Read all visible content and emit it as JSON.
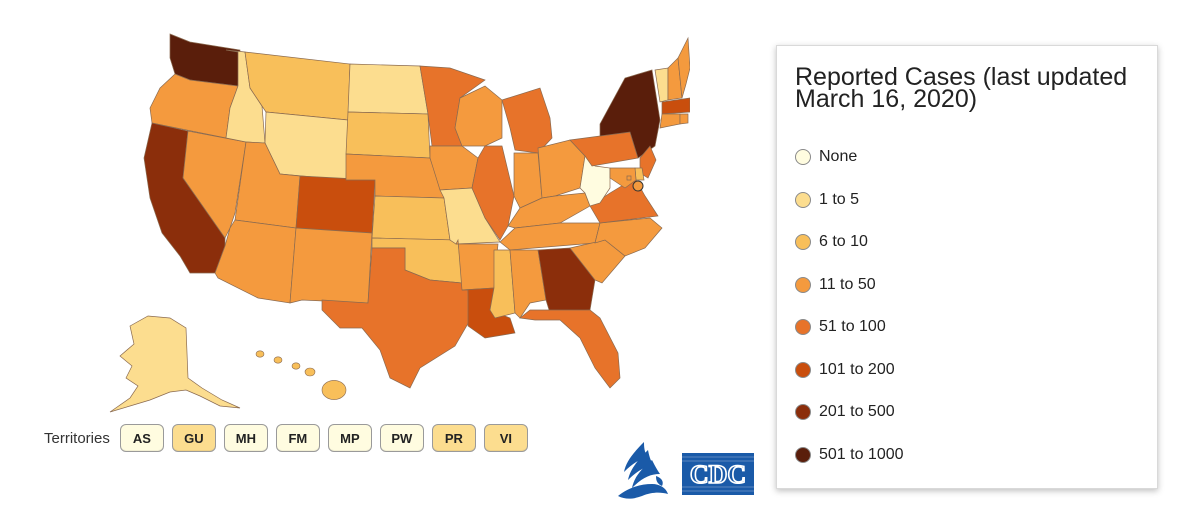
{
  "legend": {
    "title": "Reported Cases (last updated March 16, 2020)",
    "items": [
      {
        "label": "None",
        "color": "#fffce0"
      },
      {
        "label": "1 to 5",
        "color": "#fcdd8f"
      },
      {
        "label": "6 to 10",
        "color": "#f8bf5a"
      },
      {
        "label": "11 to 50",
        "color": "#f49a3e"
      },
      {
        "label": "51 to 100",
        "color": "#e7732a"
      },
      {
        "label": "101 to 200",
        "color": "#c94e0d"
      },
      {
        "label": "201 to 500",
        "color": "#8b2e0b"
      },
      {
        "label": "501 to 1000",
        "color": "#5a1e0b"
      }
    ]
  },
  "territories": {
    "label": "Territories",
    "items": [
      {
        "code": "AS",
        "color": "#fffce0"
      },
      {
        "code": "GU",
        "color": "#fcdd8f"
      },
      {
        "code": "MH",
        "color": "#fffce0"
      },
      {
        "code": "FM",
        "color": "#fffce0"
      },
      {
        "code": "MP",
        "color": "#fffce0"
      },
      {
        "code": "PW",
        "color": "#fffce0"
      },
      {
        "code": "PR",
        "color": "#fcdd8f"
      },
      {
        "code": "VI",
        "color": "#fcdd8f"
      }
    ]
  },
  "states": {
    "WA": "501 to 1000",
    "OR": "11 to 50",
    "CA": "201 to 500",
    "NV": "11 to 50",
    "ID": "1 to 5",
    "MT": "6 to 10",
    "WY": "1 to 5",
    "UT": "11 to 50",
    "AZ": "11 to 50",
    "CO": "101 to 200",
    "NM": "11 to 50",
    "ND": "1 to 5",
    "SD": "6 to 10",
    "NE": "11 to 50",
    "KS": "6 to 10",
    "OK": "6 to 10",
    "TX": "51 to 100",
    "MN": "51 to 100",
    "IA": "11 to 50",
    "MO": "1 to 5",
    "AR": "11 to 50",
    "LA": "101 to 200",
    "WI": "11 to 50",
    "IL": "51 to 100",
    "MI": "51 to 100",
    "IN": "11 to 50",
    "OH": "11 to 50",
    "KY": "11 to 50",
    "TN": "11 to 50",
    "MS": "6 to 10",
    "AL": "11 to 50",
    "GA": "201 to 500",
    "FL": "51 to 100",
    "SC": "11 to 50",
    "NC": "11 to 50",
    "VA": "51 to 100",
    "WV": "None",
    "PA": "51 to 100",
    "NY": "501 to 1000",
    "VT": "1 to 5",
    "NH": "11 to 50",
    "ME": "11 to 50",
    "MA": "101 to 200",
    "NJ": "51 to 100",
    "MD": "11 to 50",
    "DE": "6 to 10",
    "CT": "11 to 50",
    "RI": "11 to 50",
    "DC": "11 to 50",
    "AK": "1 to 5",
    "HI": "6 to 10"
  }
}
